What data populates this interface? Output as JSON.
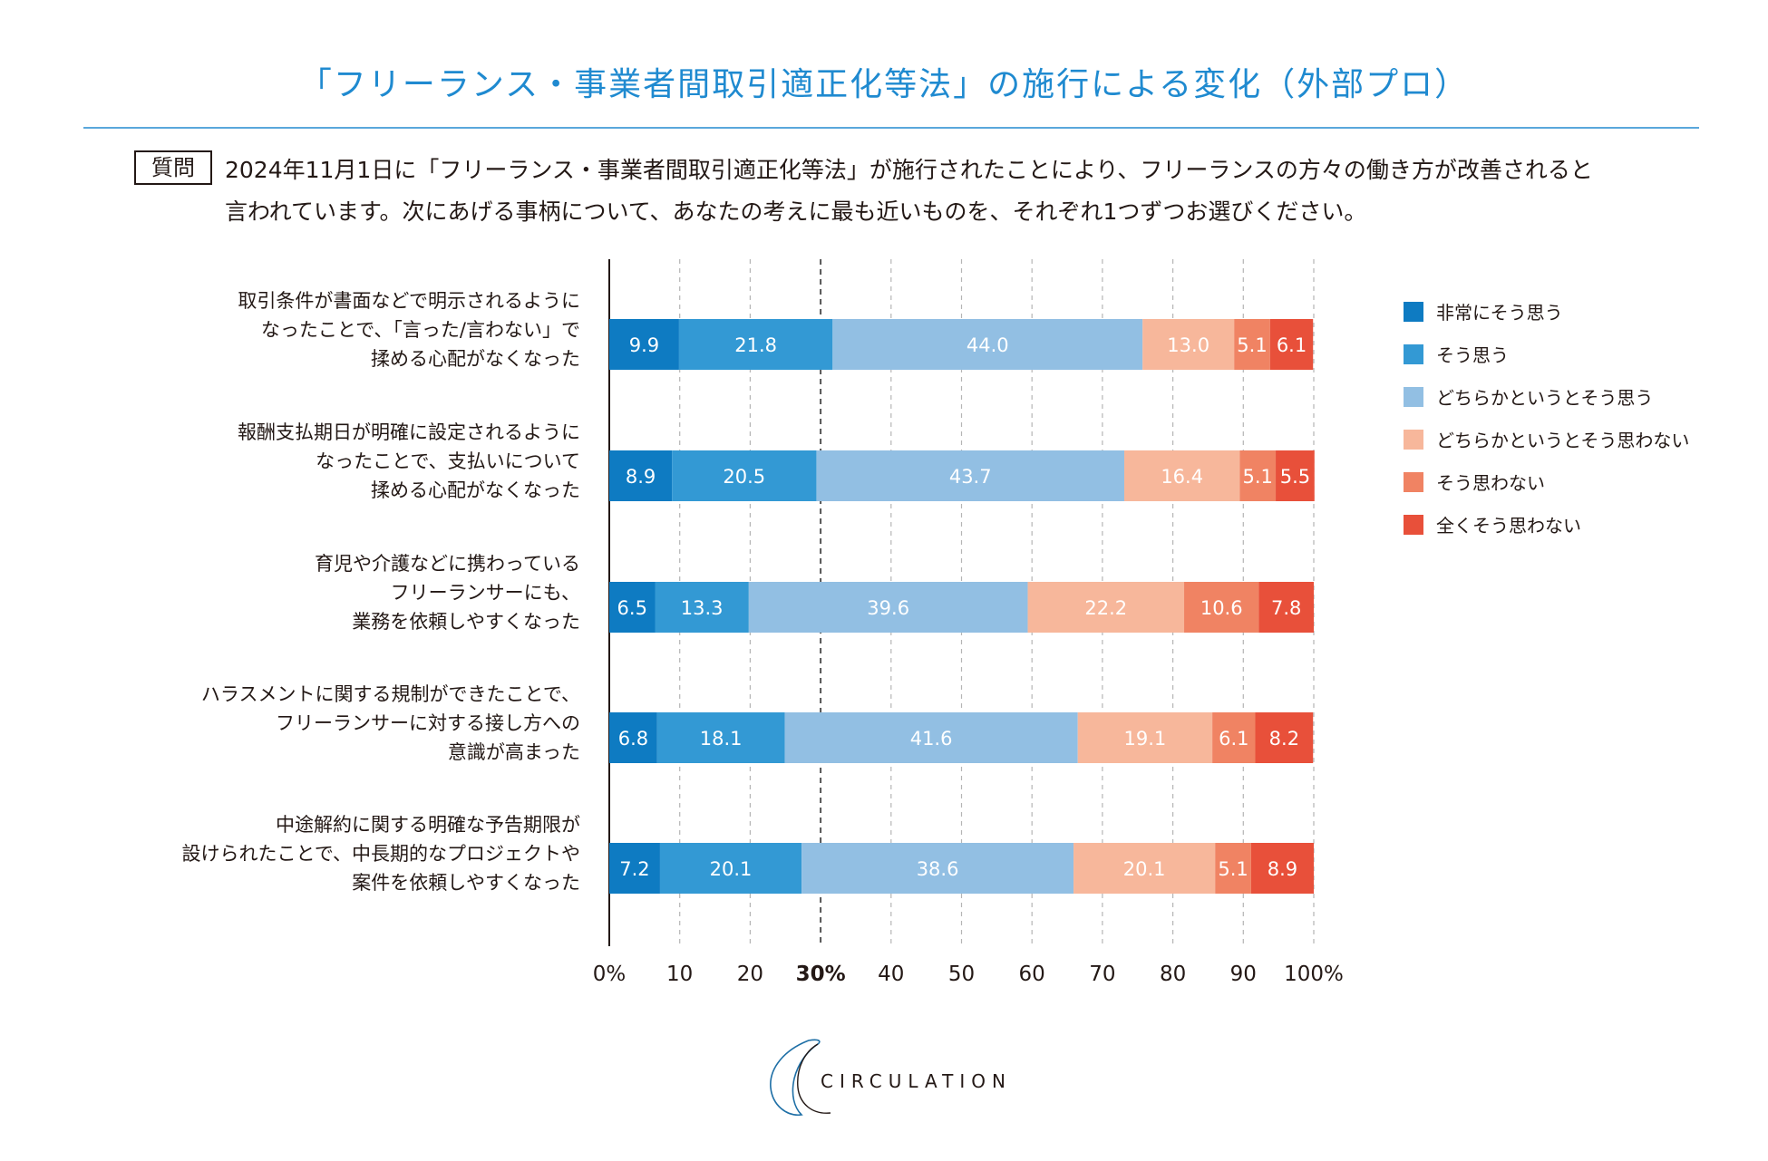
{
  "title": "「フリーランス・事業者間取引適正化等法」の施行による変化（外部プロ）",
  "question": {
    "label": "質問",
    "line1": "2024年11月1日に「フリーランス・事業者間取引適正化等法」が施行されたことにより、フリーランスの方々の働き方が改善されると",
    "line2": "言われています。次にあげる事柄について、あなたの考えに最も近いものを、それぞれ1つずつお選びください。"
  },
  "chart_data": {
    "type": "bar",
    "orientation": "horizontal",
    "stacked": true,
    "xlim": [
      0,
      100
    ],
    "x_ticks": [
      "0%",
      "10",
      "20",
      "30%",
      "40",
      "50",
      "60",
      "70",
      "80",
      "90",
      "100%"
    ],
    "reference_line": 30,
    "grid": true,
    "legend_position": "right",
    "categories": [
      [
        "取引条件が書面などで明示されるように",
        "なったことで、「言った/言わない」で",
        "揉める心配がなくなった"
      ],
      [
        "報酬支払期日が明確に設定されるように",
        "なったことで、支払いについて",
        "揉める心配がなくなった"
      ],
      [
        "育児や介護などに携わっている",
        "フリーランサーにも、",
        "業務を依頼しやすくなった"
      ],
      [
        "ハラスメントに関する規制ができたことで、",
        "フリーランサーに対する接し方への",
        "意識が高まった"
      ],
      [
        "中途解約に関する明確な予告期限が",
        "設けられたことで、中長期的なプロジェクトや",
        "案件を依頼しやすくなった"
      ]
    ],
    "series": [
      {
        "name": "非常にそう思う",
        "color": "#0e7bc2",
        "values": [
          9.9,
          8.9,
          6.5,
          6.8,
          7.2
        ]
      },
      {
        "name": "そう思う",
        "color": "#3399d4",
        "values": [
          21.8,
          20.5,
          13.3,
          18.1,
          20.1
        ]
      },
      {
        "name": "どちらかというとそう思う",
        "color": "#92bfe3",
        "values": [
          44.0,
          43.7,
          39.6,
          41.6,
          38.6
        ]
      },
      {
        "name": "どちらかというとそう思わない",
        "color": "#f7b79b",
        "values": [
          13.0,
          16.4,
          22.2,
          19.1,
          20.1
        ]
      },
      {
        "name": "そう思わない",
        "color": "#f08363",
        "values": [
          5.1,
          5.1,
          10.6,
          6.1,
          5.1
        ]
      },
      {
        "name": "全くそう思わない",
        "color": "#e8503a",
        "values": [
          6.1,
          5.5,
          7.8,
          8.2,
          8.9
        ]
      }
    ]
  },
  "logo": {
    "text": "CIRCULATION"
  }
}
